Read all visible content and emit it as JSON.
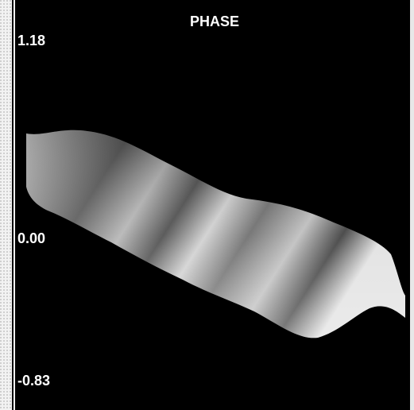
{
  "title": "PHASE",
  "scale_labels": [
    "1.18",
    "0.00",
    "-0.83"
  ]
}
